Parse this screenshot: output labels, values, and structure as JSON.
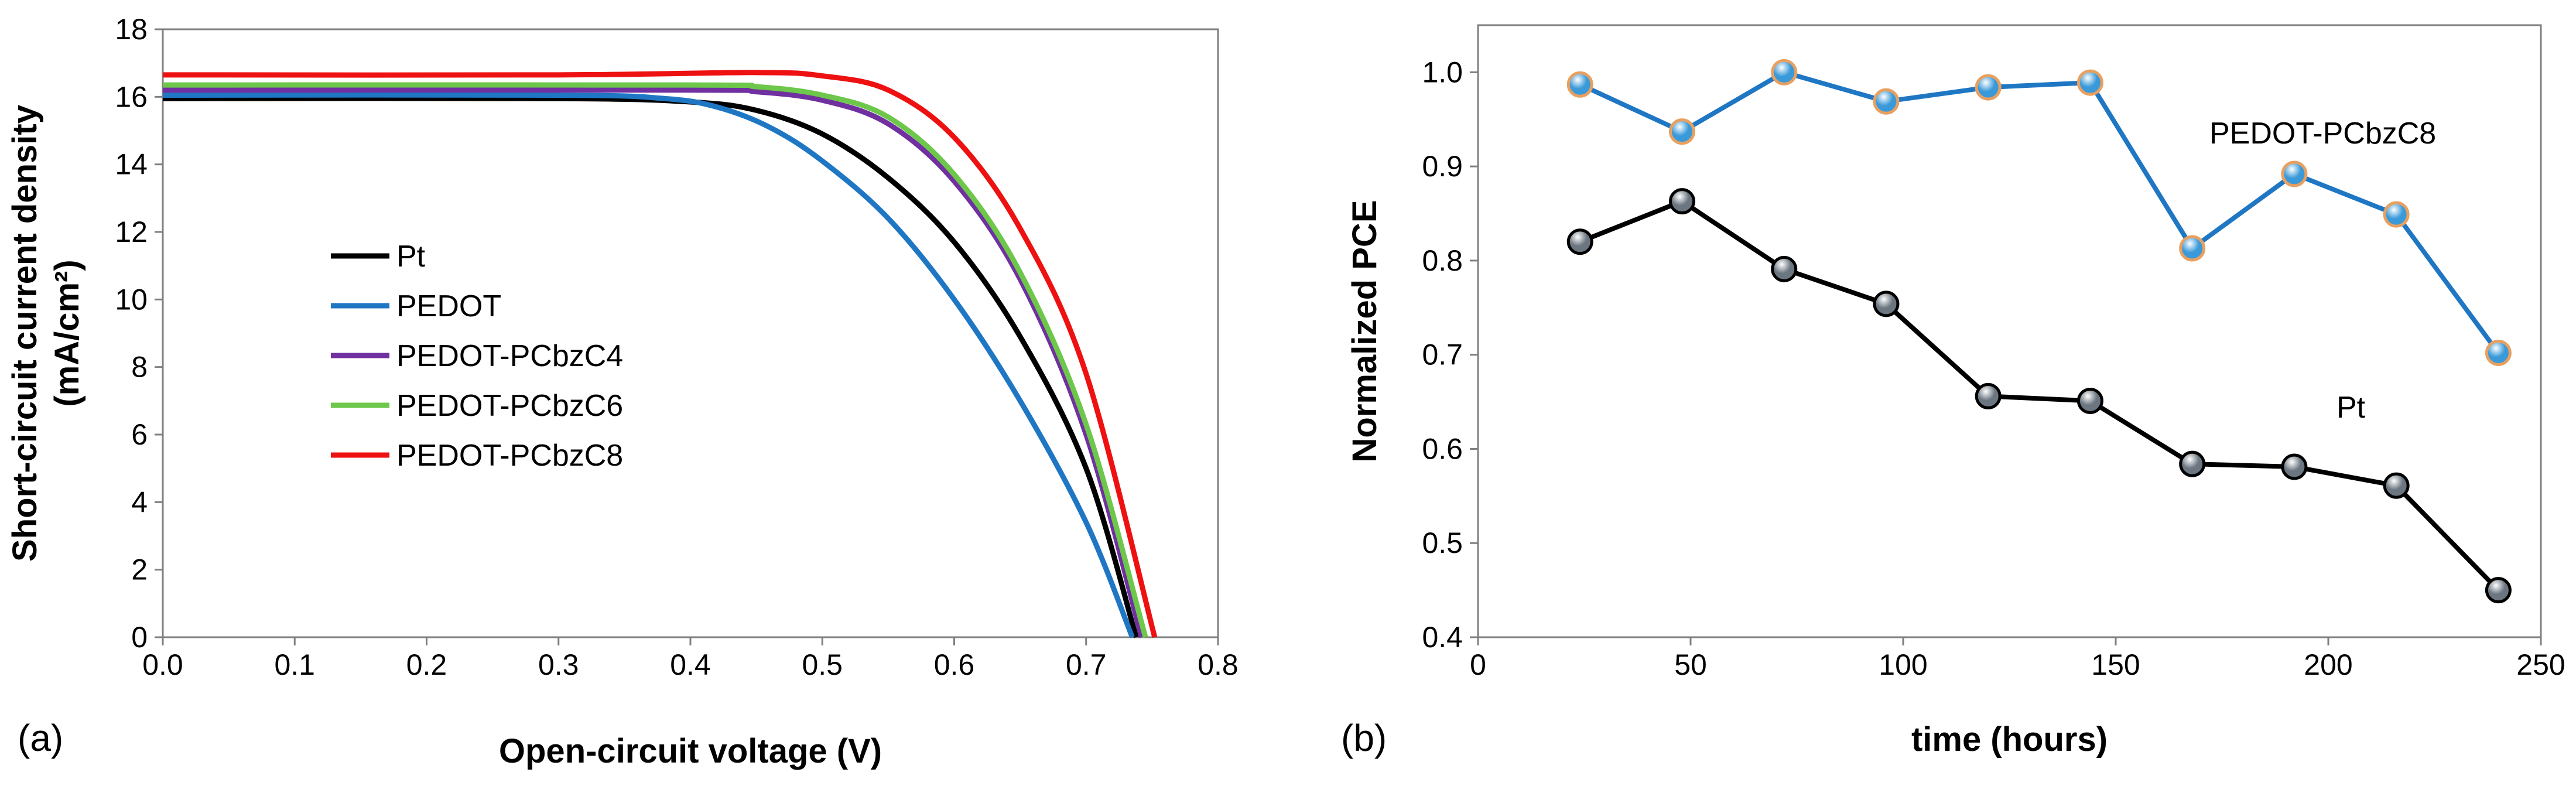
{
  "chart_data": [
    {
      "panel_label": "(a)",
      "type": "line",
      "xlabel": "Open-circuit voltage (V)",
      "ylabel_line1": "Short-circuit current density",
      "ylabel_line2": "(mA/cm²)",
      "xlim": [
        0,
        0.8
      ],
      "ylim": [
        0,
        18
      ],
      "xticks": [
        0.0,
        0.1,
        0.2,
        0.3,
        0.4,
        0.5,
        0.6,
        0.7,
        0.8
      ],
      "xtick_labels": [
        "0.0",
        "0.1",
        "0.2",
        "0.3",
        "0.4",
        "0.5",
        "0.6",
        "0.7",
        "0.8"
      ],
      "yticks": [
        0,
        2,
        4,
        6,
        8,
        10,
        12,
        14,
        16,
        18
      ],
      "ytick_labels": [
        "0",
        "2",
        "4",
        "6",
        "8",
        "10",
        "12",
        "14",
        "16",
        "18"
      ],
      "legend_position": "center-left",
      "series": [
        {
          "name": "Pt",
          "color": "#000000",
          "jsc": 15.95,
          "voc": 0.738,
          "points": [
            [
              0,
              15.95
            ],
            [
              0.3,
              15.95
            ],
            [
              0.4,
              15.85
            ],
            [
              0.45,
              15.6
            ],
            [
              0.5,
              14.9
            ],
            [
              0.55,
              13.6
            ],
            [
              0.6,
              11.7
            ],
            [
              0.65,
              8.9
            ],
            [
              0.7,
              5.0
            ],
            [
              0.738,
              0
            ]
          ]
        },
        {
          "name": "PEDOT",
          "color": "#1f77c4",
          "jsc": 16.05,
          "voc": 0.735,
          "points": [
            [
              0,
              16.05
            ],
            [
              0.3,
              16.05
            ],
            [
              0.38,
              15.95
            ],
            [
              0.42,
              15.7
            ],
            [
              0.46,
              15.1
            ],
            [
              0.5,
              14.1
            ],
            [
              0.55,
              12.4
            ],
            [
              0.6,
              10.0
            ],
            [
              0.65,
              7.0
            ],
            [
              0.7,
              3.4
            ],
            [
              0.735,
              0
            ]
          ]
        },
        {
          "name": "PEDOT-PCbzC4",
          "color": "#7030a0",
          "jsc": 16.2,
          "voc": 0.742,
          "points": [
            [
              0,
              16.2
            ],
            [
              0.4,
              16.2
            ],
            [
              0.45,
              16.15
            ],
            [
              0.5,
              15.9
            ],
            [
              0.55,
              15.2
            ],
            [
              0.6,
              13.5
            ],
            [
              0.65,
              10.6
            ],
            [
              0.7,
              6.0
            ],
            [
              0.742,
              0
            ]
          ]
        },
        {
          "name": "PEDOT-PCbzC6",
          "color": "#6dc74a",
          "jsc": 16.35,
          "voc": 0.745,
          "points": [
            [
              0,
              16.35
            ],
            [
              0.4,
              16.35
            ],
            [
              0.45,
              16.3
            ],
            [
              0.5,
              16.05
            ],
            [
              0.55,
              15.4
            ],
            [
              0.6,
              13.7
            ],
            [
              0.65,
              10.8
            ],
            [
              0.7,
              6.3
            ],
            [
              0.745,
              0
            ]
          ]
        },
        {
          "name": "PEDOT-PCbzC8",
          "color": "#ee1111",
          "jsc": 16.65,
          "voc": 0.752,
          "points": [
            [
              0,
              16.65
            ],
            [
              0.3,
              16.65
            ],
            [
              0.45,
              16.72
            ],
            [
              0.5,
              16.62
            ],
            [
              0.55,
              16.2
            ],
            [
              0.6,
              14.8
            ],
            [
              0.65,
              12.1
            ],
            [
              0.7,
              7.8
            ],
            [
              0.752,
              0
            ]
          ]
        }
      ]
    },
    {
      "panel_label": "(b)",
      "type": "line",
      "xlabel": "time (hours)",
      "ylabel": "Normalized PCE",
      "xlim": [
        0,
        250
      ],
      "ylim": [
        0.4,
        1.05
      ],
      "xticks": [
        0,
        50,
        100,
        150,
        200,
        250
      ],
      "xtick_labels": [
        "0",
        "50",
        "100",
        "150",
        "200",
        "250"
      ],
      "yticks": [
        0.4,
        0.5,
        0.6,
        0.7,
        0.8,
        0.9,
        1.0
      ],
      "ytick_labels": [
        "0.4",
        "0.5",
        "0.6",
        "0.7",
        "0.8",
        "0.9",
        "1.0"
      ],
      "series": [
        {
          "name": "PEDOT-PCbzC8",
          "color": "#1f77c4",
          "marker_fill": "#3a9ad9",
          "marker_edge": "#e8a060",
          "x": [
            24,
            48,
            72,
            96,
            120,
            144,
            168,
            192,
            216,
            240
          ],
          "y": [
            0.987,
            0.937,
            1.0,
            0.969,
            0.984,
            0.989,
            0.813,
            0.892,
            0.849,
            0.702
          ]
        },
        {
          "name": "Pt",
          "color": "#000000",
          "marker_fill": "#6b7680",
          "marker_edge": "#000000",
          "x": [
            24,
            48,
            72,
            96,
            120,
            144,
            168,
            192,
            216,
            240
          ],
          "y": [
            0.82,
            0.863,
            0.791,
            0.754,
            0.656,
            0.651,
            0.584,
            0.581,
            0.561,
            0.45
          ]
        }
      ],
      "annotations": [
        "PEDOT-PCbzC8",
        "Pt"
      ]
    }
  ]
}
